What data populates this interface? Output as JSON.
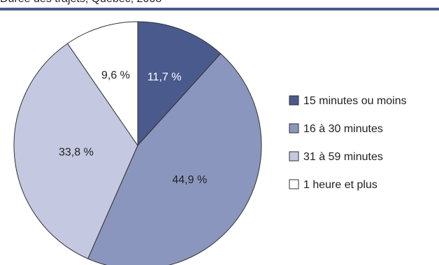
{
  "header": {
    "title_fragment": "Durée des trajets, Québec, 2008"
  },
  "colors": {
    "rule": "#4a5a8c",
    "slice_outline": "#333333",
    "text": "#222222"
  },
  "chart_data": {
    "type": "pie",
    "title": "",
    "start_angle_deg": 0,
    "direction": "clockwise",
    "legend_position": "right",
    "slices": [
      {
        "name": "15 minutes ou moins",
        "value": 11.7,
        "label": "11,7 %",
        "color": "#4a5a8c",
        "label_color": "#ffffff"
      },
      {
        "name": "16 à 30 minutes",
        "value": 44.9,
        "label": "44,9 %",
        "color": "#8a96bd",
        "label_color": "#222222"
      },
      {
        "name": "31 à 59 minutes",
        "value": 33.8,
        "label": "33,8 %",
        "color": "#c4c8e0",
        "label_color": "#222222"
      },
      {
        "name": "1 heure et plus",
        "value": 9.6,
        "label": "9,6 %",
        "color": "#ffffff",
        "label_color": "#222222"
      }
    ]
  }
}
